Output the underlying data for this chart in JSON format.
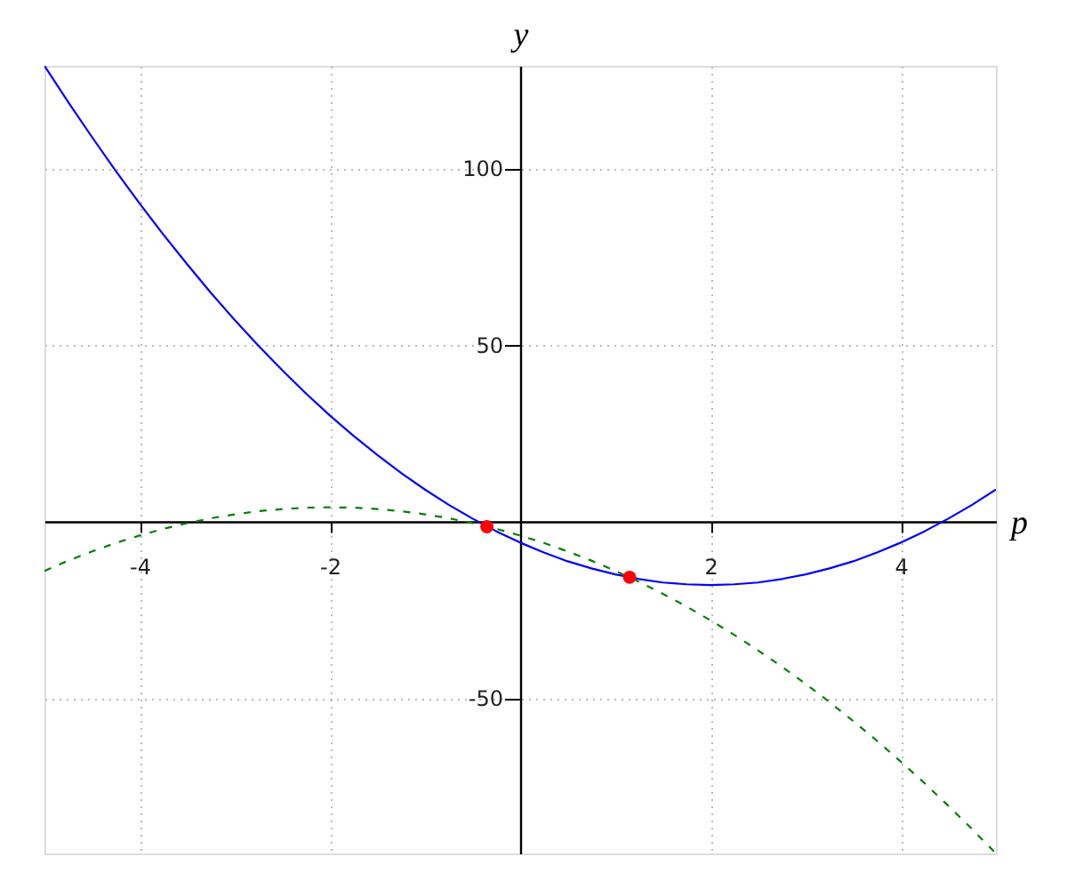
{
  "chart_data": {
    "type": "line",
    "xlabel": "p",
    "ylabel": "y",
    "xlim": [
      -5,
      5
    ],
    "ylim": [
      -94,
      129
    ],
    "xticks": [
      -4,
      -2,
      2,
      4
    ],
    "yticks": [
      -50,
      50,
      100
    ],
    "grid": true,
    "x": [
      -5,
      -4.75,
      -4.5,
      -4.25,
      -4,
      -3.75,
      -3.5,
      -3.25,
      -3,
      -2.75,
      -2.5,
      -2.25,
      -2,
      -1.75,
      -1.5,
      -1.25,
      -1,
      -0.75,
      -0.5,
      -0.25,
      0,
      0.25,
      0.5,
      0.75,
      1,
      1.25,
      1.5,
      1.75,
      2,
      2.25,
      2.5,
      2.75,
      3,
      3.25,
      3.5,
      3.75,
      4,
      4.25,
      4.5,
      4.75,
      5
    ],
    "series": [
      {
        "color": "#0000ff",
        "line_style": "solid",
        "values": [
          129,
          118.7,
          108.8,
          99.2,
          90,
          81.2,
          72.8,
          64.7,
          57,
          49.7,
          42.8,
          36.2,
          30,
          24.2,
          18.8,
          13.7,
          9,
          4.7,
          0.8,
          -2.8,
          -6,
          -8.8,
          -11.3,
          -13.3,
          -15,
          -16.3,
          -17.3,
          -17.8,
          -18,
          -17.8,
          -17.3,
          -16.3,
          -15,
          -13.3,
          -11.3,
          -8.8,
          -6,
          -2.8,
          0.8,
          4.7,
          9
        ]
      },
      {
        "color": "#008000",
        "line_style": "dashed",
        "values": [
          -14,
          -11.1,
          -8.5,
          -6.1,
          -4,
          -2.1,
          -0.5,
          0.9,
          2,
          2.9,
          3.5,
          3.9,
          4,
          3.9,
          3.5,
          2.9,
          2,
          0.9,
          -0.5,
          -2.1,
          -4,
          -6.1,
          -8.5,
          -11.1,
          -14,
          -17.1,
          -20.5,
          -24.1,
          -28,
          -32.1,
          -36.5,
          -41.1,
          -46,
          -51.1,
          -56.5,
          -62.1,
          -68,
          -74.1,
          -80.5,
          -87.1,
          -94
        ]
      },
      {
        "type": "scatter",
        "color": "#ff0000",
        "marker": "circle",
        "x": [
          -0.35,
          1.15
        ],
        "values": [
          -1.5,
          -15.8
        ]
      }
    ]
  }
}
